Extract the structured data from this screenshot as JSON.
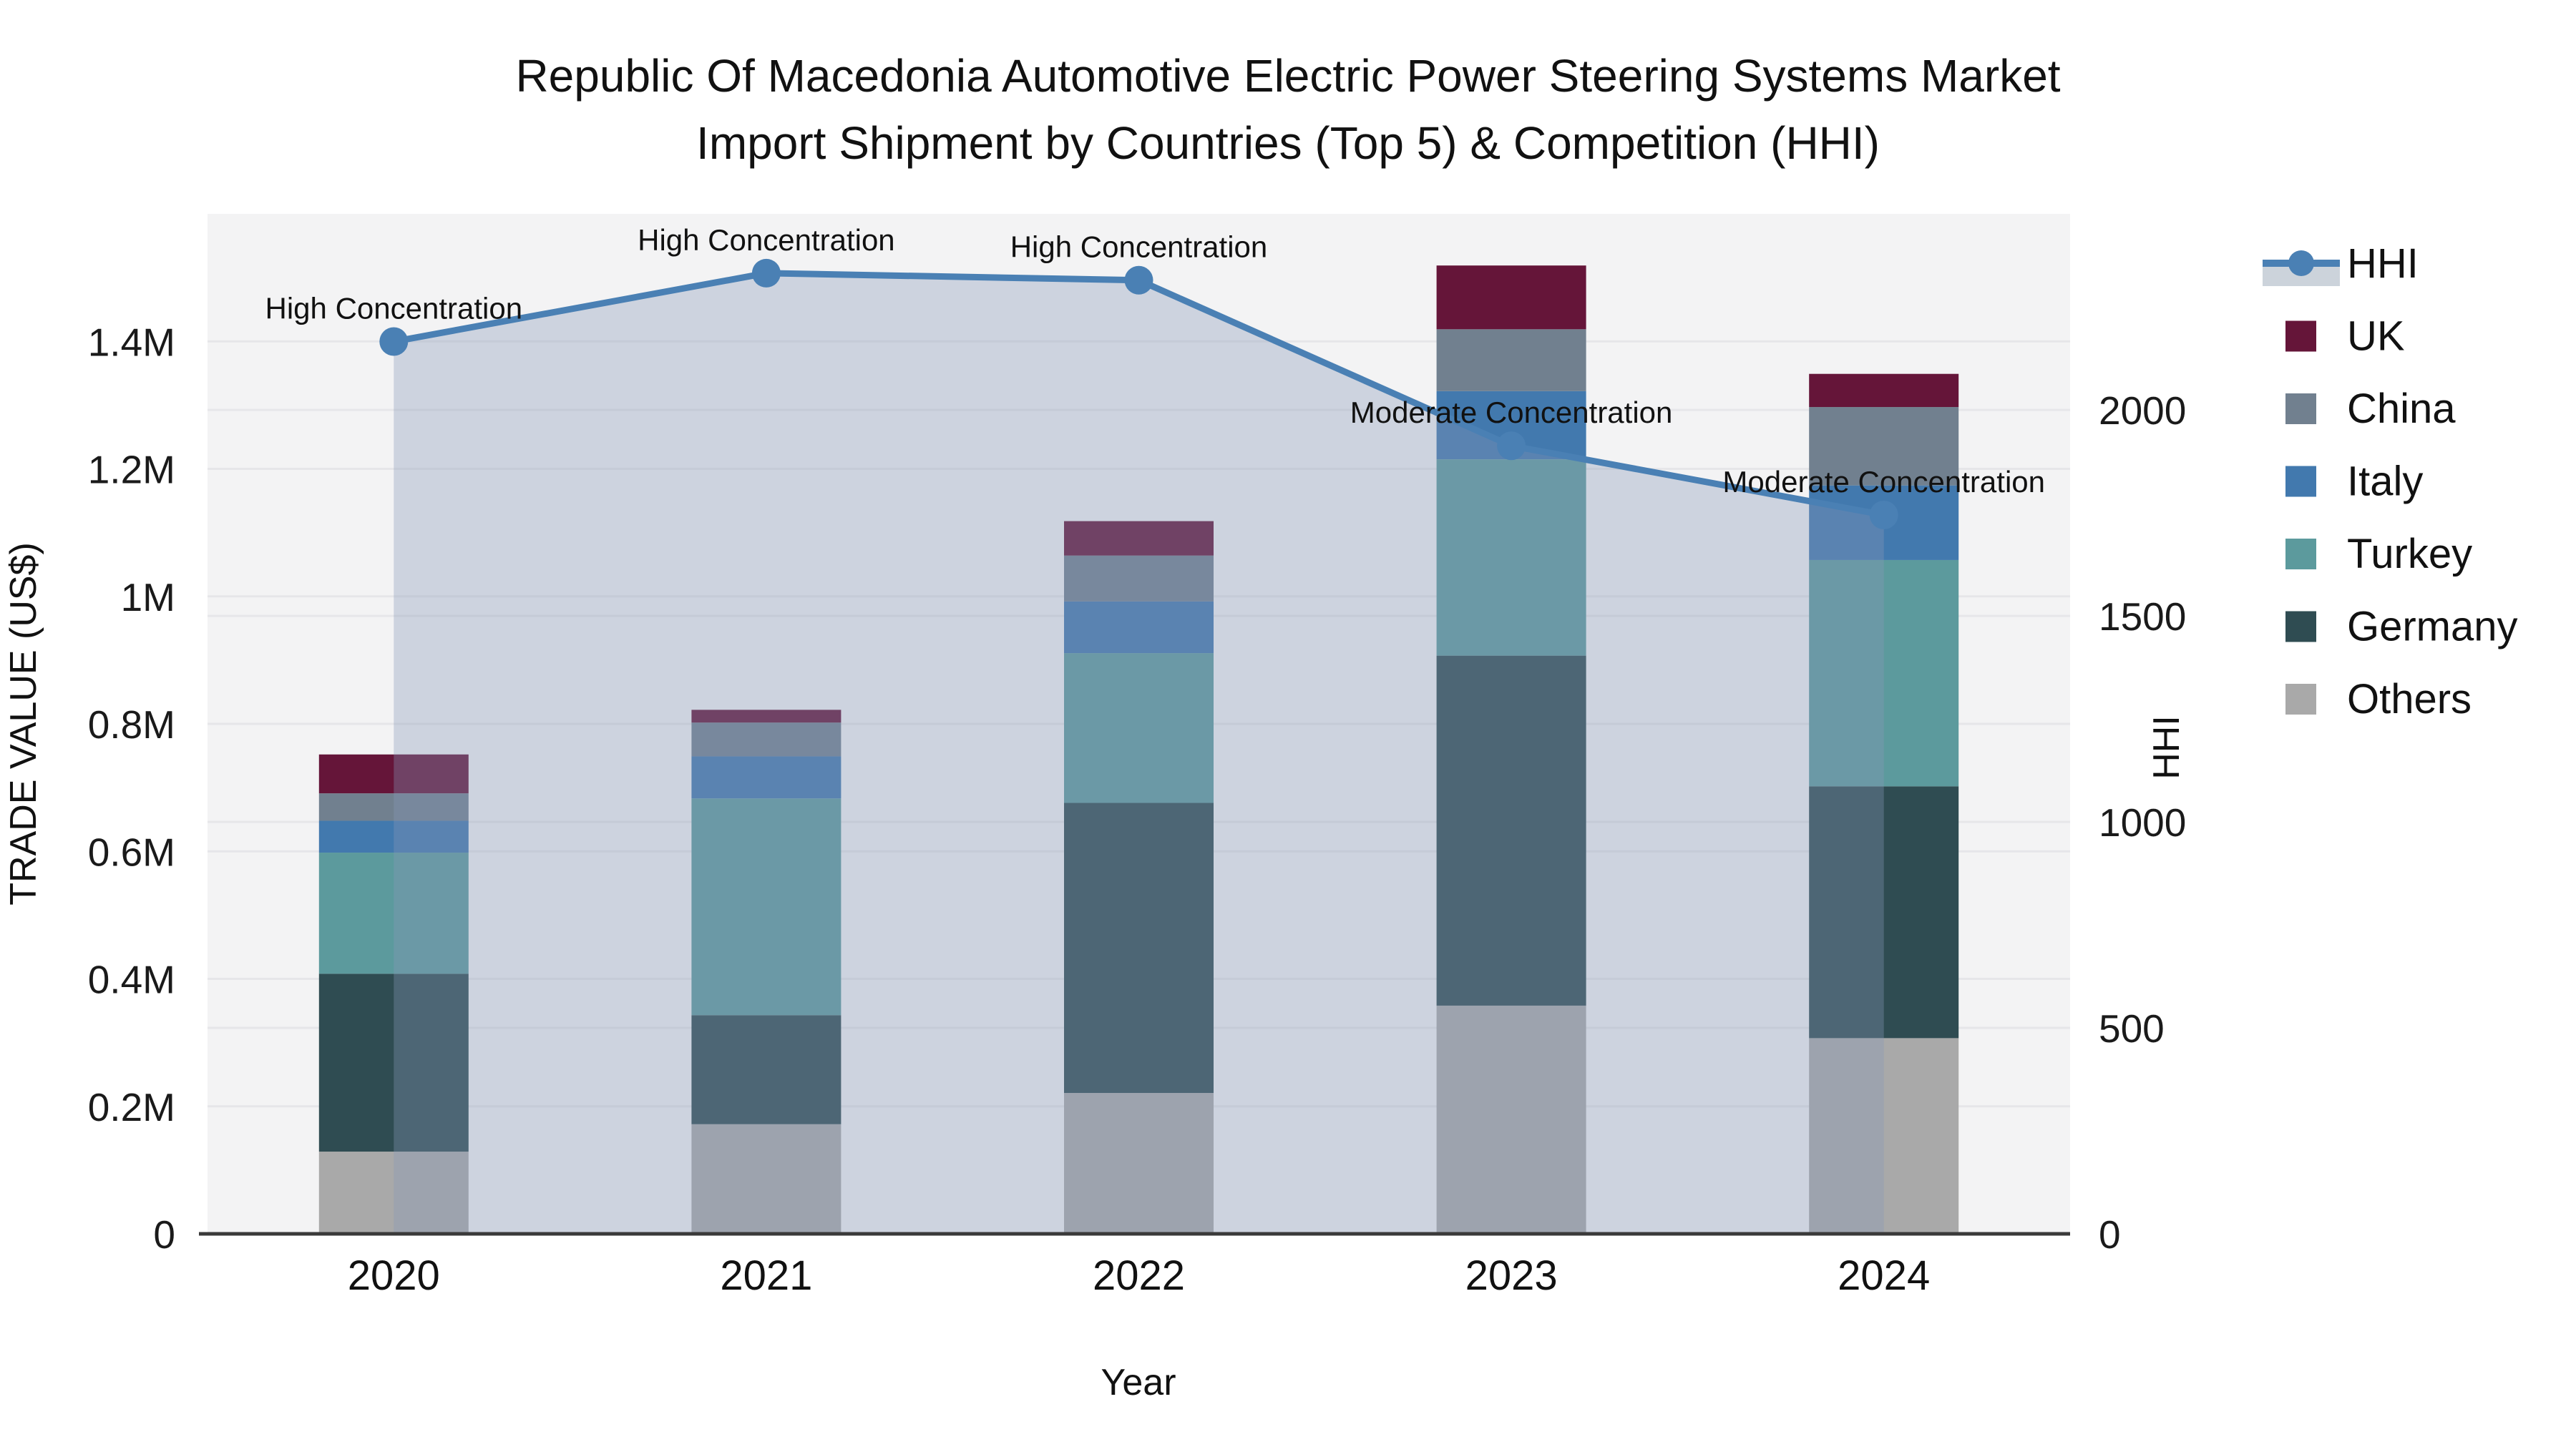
{
  "title": {
    "line1": "Republic Of Macedonia Automotive Electric Power Steering Systems Market",
    "line2": "Import Shipment by Countries (Top 5) & Competition (HHI)"
  },
  "x_axis": {
    "title": "Year",
    "categories": [
      "2020",
      "2021",
      "2022",
      "2023",
      "2024"
    ]
  },
  "y_axis": {
    "title": "TRADE VALUE (US$)",
    "max_musd": 1.6,
    "ticks": [
      {
        "label": "0",
        "value": 0
      },
      {
        "label": "0.2M",
        "value": 0.2
      },
      {
        "label": "0.4M",
        "value": 0.4
      },
      {
        "label": "0.6M",
        "value": 0.6
      },
      {
        "label": "0.8M",
        "value": 0.8
      },
      {
        "label": "1M",
        "value": 1.0
      },
      {
        "label": "1.2M",
        "value": 1.2
      },
      {
        "label": "1.4M",
        "value": 1.4
      }
    ]
  },
  "y2_axis": {
    "title": "HHI",
    "max": 2476,
    "ticks": [
      {
        "label": "0",
        "value": 0
      },
      {
        "label": "500",
        "value": 500
      },
      {
        "label": "1000",
        "value": 1000
      },
      {
        "label": "1500",
        "value": 1500
      },
      {
        "label": "2000",
        "value": 2000
      }
    ]
  },
  "legend": {
    "items": [
      "HHI",
      "UK",
      "China",
      "Italy",
      "Turkey",
      "Germany",
      "Others"
    ]
  },
  "colors": {
    "hhi_line": "#4a80b4",
    "area_fill": "rgba(136,153,184,0.35)",
    "plot_bg": "#f3f3f4",
    "gridline": "#e6e6e9",
    "axis_line": "#3a3a3a",
    "uk": "#651539",
    "china": "#71808f",
    "italy": "#4279ae",
    "turkey": "#5c9a9d",
    "germany": "#2f4c52",
    "others": "#a9a9a9"
  },
  "chart_data": {
    "type": "bar",
    "subtype": "stacked-bars-with-line",
    "categories": [
      "2020",
      "2021",
      "2022",
      "2023",
      "2024"
    ],
    "stack_order_bottom_to_top": [
      "Others",
      "Germany",
      "Turkey",
      "Italy",
      "China",
      "UK"
    ],
    "series": [
      {
        "name": "Others",
        "color": "#a9a9a9",
        "values_musd": [
          0.129,
          0.172,
          0.221,
          0.358,
          0.307
        ]
      },
      {
        "name": "Germany",
        "color": "#2f4c52",
        "values_musd": [
          0.279,
          0.171,
          0.455,
          0.549,
          0.395
        ]
      },
      {
        "name": "Turkey",
        "color": "#5c9a9d",
        "values_musd": [
          0.19,
          0.34,
          0.235,
          0.308,
          0.355
        ]
      },
      {
        "name": "Italy",
        "color": "#4279ae",
        "values_musd": [
          0.05,
          0.066,
          0.081,
          0.107,
          0.117
        ]
      },
      {
        "name": "China",
        "color": "#71808f",
        "values_musd": [
          0.043,
          0.053,
          0.072,
          0.097,
          0.123
        ]
      },
      {
        "name": "UK",
        "color": "#651539",
        "values_musd": [
          0.061,
          0.02,
          0.054,
          0.1,
          0.052
        ]
      }
    ],
    "bar_totals_musd": [
      0.752,
      0.822,
      1.118,
      1.519,
      1.349
    ],
    "line_series": {
      "name": "HHI",
      "color": "#4a80b4",
      "values": [
        2166,
        2332,
        2315,
        1913,
        1745
      ]
    },
    "annotations": [
      "High Concentration",
      "High Concentration",
      "High Concentration",
      "Moderate Concentration",
      "Moderate Concentration"
    ],
    "ylim_musd": [
      0,
      1.6
    ],
    "y2lim": [
      0,
      2476
    ],
    "grid": true,
    "legend_position": "right"
  }
}
